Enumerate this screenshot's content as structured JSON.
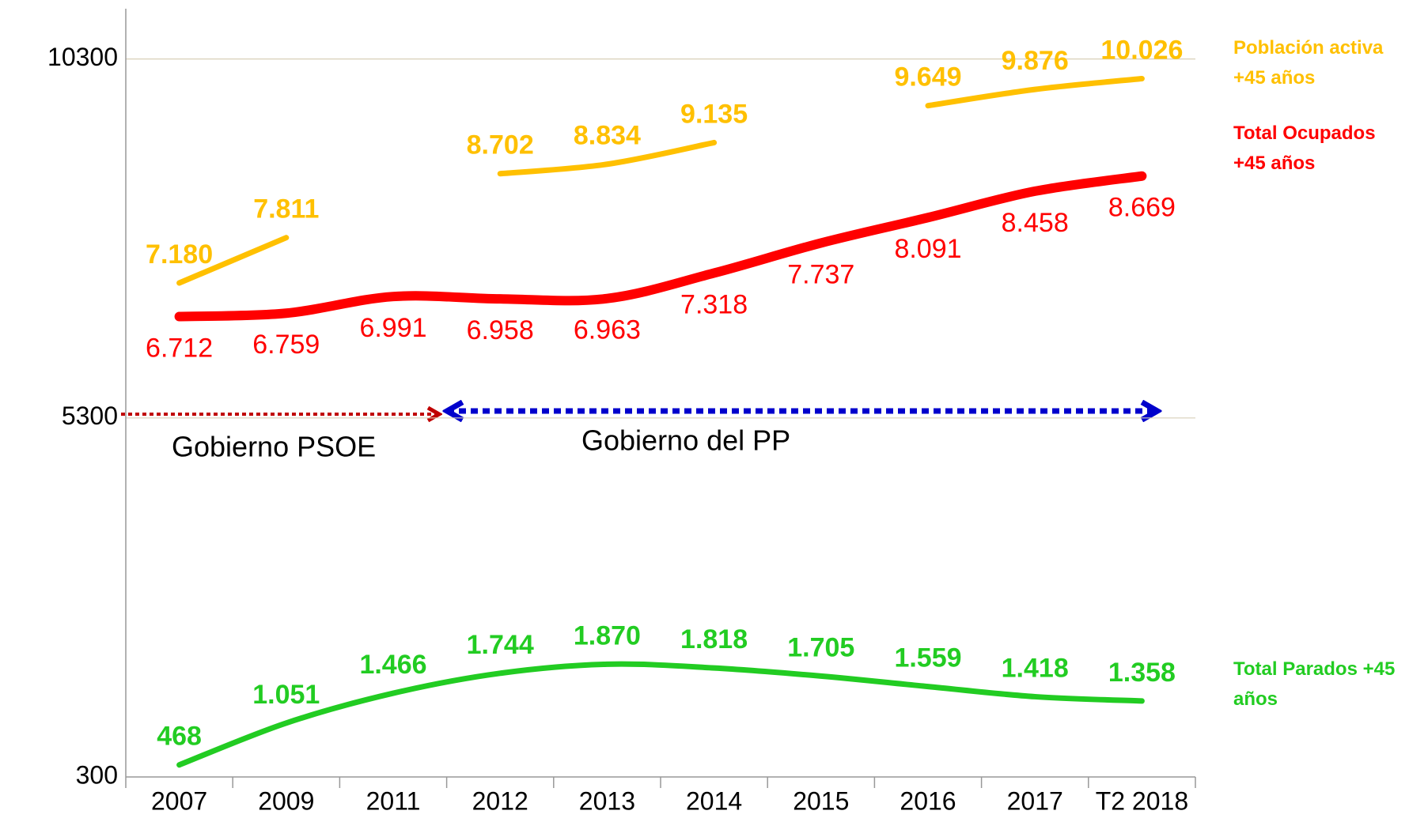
{
  "chart_data": {
    "type": "line",
    "categories": [
      "2007",
      "2009",
      "2011",
      "2012",
      "2013",
      "2014",
      "2015",
      "2016",
      "2017",
      "T2 2018"
    ],
    "series": [
      {
        "name": "Población activa +45 años",
        "color": "#ffc000",
        "values": [
          7180,
          7811,
          null,
          8702,
          8834,
          9135,
          null,
          9649,
          9876,
          10026
        ],
        "value_labels": [
          "7.180",
          "7.811",
          null,
          "8.702",
          "8.834",
          "9.135",
          null,
          "9.649",
          "9.876",
          "10.026"
        ]
      },
      {
        "name": "Total Ocupados +45 años",
        "color": "#ff0000",
        "values": [
          6712,
          6759,
          6991,
          6958,
          6963,
          7318,
          7737,
          8091,
          8458,
          8669
        ],
        "value_labels": [
          "6.712",
          "6.759",
          "6.991",
          "6.958",
          "6.963",
          "7.318",
          "7.737",
          "8.091",
          "8.458",
          "8.669"
        ]
      },
      {
        "name": "Total Parados +45  años",
        "color": "#22cc22",
        "values": [
          468,
          1051,
          1466,
          1744,
          1870,
          1818,
          1705,
          1559,
          1418,
          1358
        ],
        "value_labels": [
          "468",
          "1.051",
          "1.466",
          "1.744",
          "1.870",
          "1.818",
          "1.705",
          "1.559",
          "1.418",
          "1.358"
        ]
      }
    ],
    "annotations": [
      "Gobierno PSOE",
      "Gobierno del PP"
    ],
    "ylim": [
      300,
      11000
    ],
    "yticks": [
      300,
      5300,
      10300
    ],
    "grid": true
  }
}
